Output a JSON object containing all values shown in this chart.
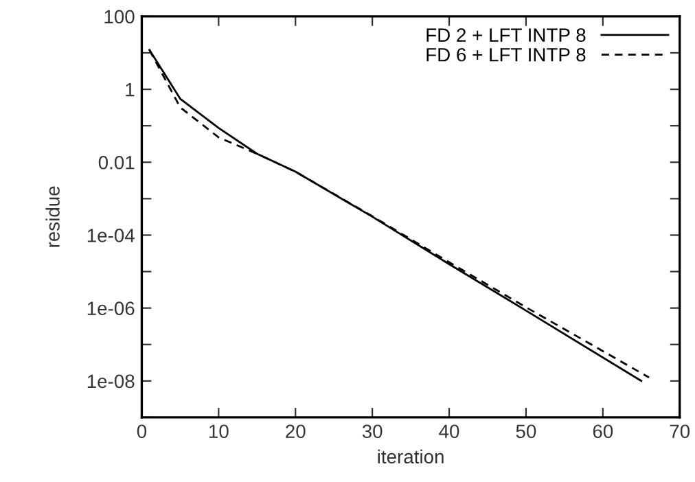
{
  "chart_data": {
    "type": "line",
    "xlabel": "iteration",
    "ylabel": "residue",
    "log": "y",
    "legend": "top right",
    "grid": false,
    "xlim": [
      0,
      70
    ],
    "xticks": [
      0,
      10,
      20,
      30,
      40,
      50,
      60,
      70
    ],
    "ylim": [
      1e-09,
      100
    ],
    "yticks": [
      100,
      {
        "value": 10,
        "label": null
      },
      1,
      {
        "value": 0.1,
        "label": null
      },
      0.01,
      {
        "value": 0.001,
        "label": null
      },
      {
        "value": 0.0001,
        "label": "1e-04"
      },
      {
        "value": 1e-05,
        "label": null
      },
      {
        "value": 1e-06,
        "label": "1e-06"
      },
      {
        "value": 1e-07,
        "label": null
      },
      {
        "value": 1e-08,
        "label": "1e-08"
      },
      {
        "value": 1e-09,
        "label": null
      }
    ],
    "series": [
      {
        "name": "FD 2 + LFT INTP 8",
        "color": "#000000",
        "line_style": "solid",
        "x": [
          1,
          5,
          10,
          15,
          20,
          30,
          40,
          50,
          65
        ],
        "values": [
          12,
          0.55,
          0.087,
          0.017,
          0.0055,
          0.00032,
          1.6e-05,
          8.5e-07,
          1e-08
        ]
      },
      {
        "name": "FD 6 + LFT INTP 8",
        "color": "#000000",
        "line_style": "dashed",
        "x": [
          1,
          5,
          10,
          15,
          20,
          30,
          40,
          50,
          66
        ],
        "values": [
          12,
          0.32,
          0.048,
          0.017,
          0.0055,
          0.00033,
          1.8e-05,
          1.05e-06,
          1.25e-08
        ]
      }
    ]
  }
}
